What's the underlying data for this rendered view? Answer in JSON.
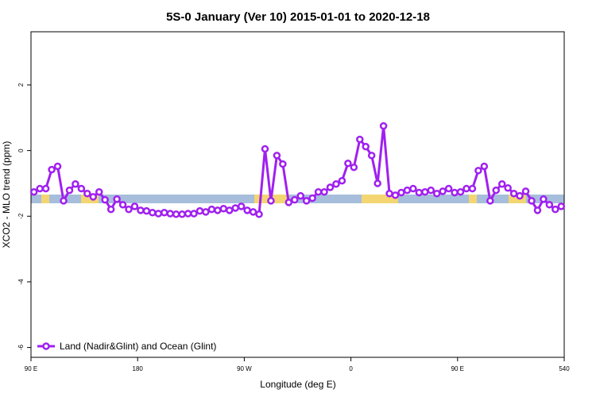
{
  "chart_data": {
    "type": "line",
    "title": "5S-0 January (Ver 10)   2015-01-01 to 2020-12-18",
    "x_label": "Longitude (deg E)",
    "y_label": "XCO2 - MLO trend (ppm)",
    "x": [
      92.5,
      97.5,
      102.5,
      107.5,
      112.5,
      117.5,
      122.5,
      127.5,
      132.5,
      137.5,
      142.5,
      147.5,
      152.5,
      157.5,
      162.5,
      167.5,
      172.5,
      177.5,
      182.5,
      187.5,
      192.5,
      197.5,
      202.5,
      207.5,
      212.5,
      217.5,
      222.5,
      227.5,
      232.5,
      237.5,
      242.5,
      247.5,
      252.5,
      257.5,
      262.5,
      267.5,
      272.5,
      277.5,
      282.5,
      287.5,
      292.5,
      297.5,
      302.5,
      307.5,
      312.5,
      317.5,
      322.5,
      327.5,
      332.5,
      337.5,
      342.5,
      347.5,
      352.5,
      357.5,
      362.5,
      367.5,
      372.5,
      377.5,
      382.5,
      387.5,
      392.5,
      397.5,
      402.5,
      407.5,
      412.5,
      417.5,
      422.5,
      427.5,
      432.5,
      437.5,
      442.5,
      447.5,
      452.5,
      457.5,
      462.5,
      467.5,
      472.5,
      477.5,
      482.5,
      487.5,
      492.5,
      497.5,
      502.5,
      507.5,
      512.5,
      517.5,
      522.5,
      527.5,
      532.5,
      537.5
    ],
    "series": [
      {
        "name": "Land (Nadir&Glint) and Ocean (Glint)",
        "color": "#a020f0",
        "values": [
          -1.26,
          -1.16,
          -1.16,
          -0.58,
          -0.48,
          -1.53,
          -1.21,
          -1.02,
          -1.16,
          -1.31,
          -1.41,
          -1.26,
          -1.5,
          -1.79,
          -1.48,
          -1.65,
          -1.79,
          -1.7,
          -1.82,
          -1.84,
          -1.89,
          -1.92,
          -1.89,
          -1.92,
          -1.94,
          -1.94,
          -1.92,
          -1.92,
          -1.84,
          -1.87,
          -1.79,
          -1.82,
          -1.77,
          -1.82,
          -1.75,
          -1.7,
          -1.82,
          -1.87,
          -1.94,
          0.05,
          -1.53,
          -0.15,
          -0.41,
          -1.58,
          -1.5,
          -1.38,
          -1.53,
          -1.45,
          -1.26,
          -1.26,
          -1.12,
          -1.02,
          -0.92,
          -0.39,
          -0.51,
          0.34,
          0.12,
          -0.15,
          -1.0,
          0.75,
          -1.31,
          -1.36,
          -1.28,
          -1.21,
          -1.16,
          -1.28,
          -1.26,
          -1.21,
          -1.31,
          -1.24,
          -1.16,
          -1.28,
          -1.26,
          -1.16,
          -1.16,
          -0.61,
          -0.48,
          -1.53,
          -1.21,
          -1.02,
          -1.14,
          -1.31,
          -1.38,
          -1.24,
          -1.53,
          -1.82,
          -1.48,
          -1.65,
          -1.79,
          -1.7
        ]
      }
    ],
    "xlim": [
      90,
      540
    ],
    "xticks": [
      {
        "value": 90,
        "label": "90 E"
      },
      180,
      {
        "value": 270,
        "label": "90 W"
      },
      {
        "value": 360,
        "label": "0"
      },
      {
        "value": 450,
        "label": "90 E"
      },
      540
    ],
    "ylim": [
      -6.3,
      3.62
    ],
    "yticks": [
      -6,
      -4,
      -2,
      0,
      2
    ],
    "legend": "bottom-left"
  }
}
